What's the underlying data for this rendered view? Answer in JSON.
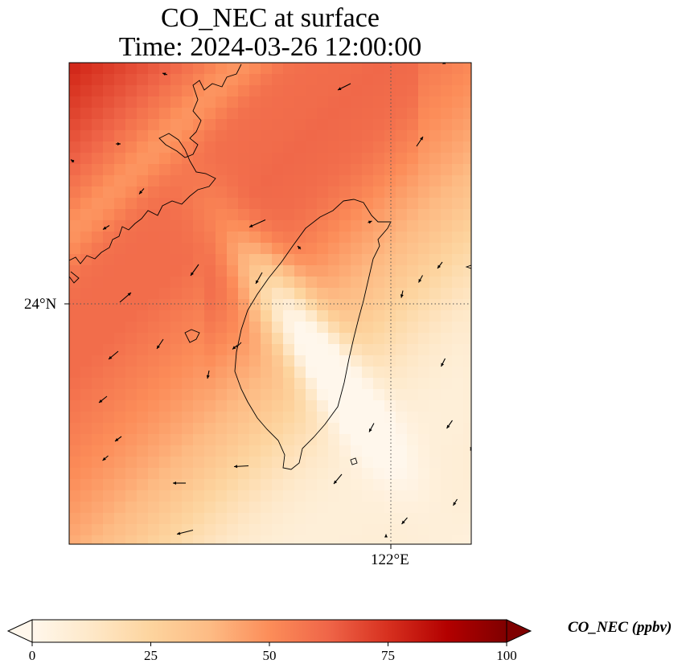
{
  "title": {
    "line1": "CO_NEC at surface",
    "line2": "Time: 2024-03-26 12:00:00"
  },
  "axes": {
    "lat_tick": "24°N",
    "lon_tick": "122°E"
  },
  "colorbar": {
    "label": "CO_NEC (ppbv)",
    "min": 0,
    "max": 100,
    "ticks": [
      "0",
      "25",
      "50",
      "75",
      "100"
    ],
    "tick_values": [
      0,
      25,
      50,
      75,
      100
    ],
    "colormap": "OrRd",
    "colors": [
      "#fff7ec",
      "#fee8c8",
      "#fdd49e",
      "#fdbb84",
      "#fc8d59",
      "#ef6548",
      "#d7301f",
      "#b30000",
      "#7f0000"
    ],
    "extend": "both"
  },
  "map": {
    "gridlines": "dotted",
    "coastline_color": "#000000",
    "wind_arrows_color": "#000000"
  }
}
